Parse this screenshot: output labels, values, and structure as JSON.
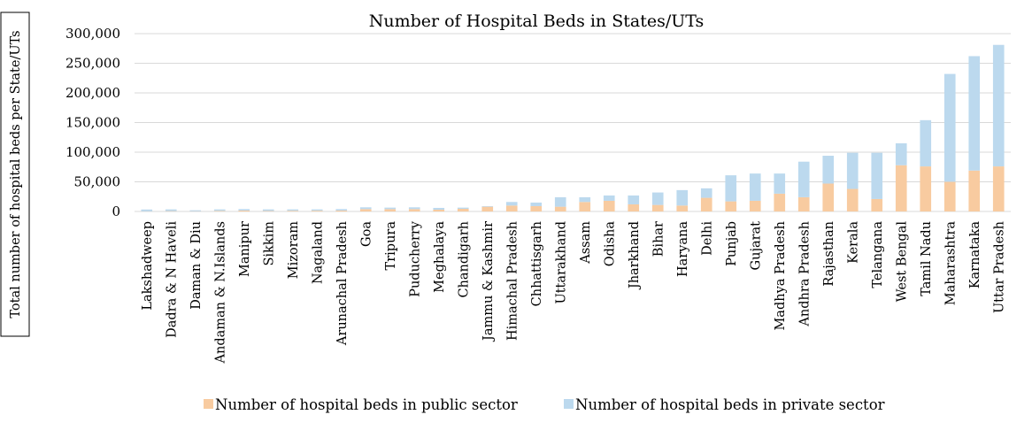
{
  "chart_data": {
    "type": "bar",
    "stacked": true,
    "title": "Number of Hospital Beds in States/UTs",
    "ylabel": "Total number of hospital beds per State/UTs",
    "xlabel": "",
    "ylim": [
      0,
      300000
    ],
    "yticks": [
      0,
      50000,
      100000,
      150000,
      200000,
      250000,
      300000
    ],
    "ytick_labels": [
      "0",
      "50,000",
      "100,000",
      "150,000",
      "200,000",
      "250,000",
      "300,000"
    ],
    "grid": true,
    "legend_position": "bottom",
    "categories": [
      "Lakshadweep",
      "Dadra & N Haveli",
      "Daman & Diu",
      "Andaman & N.Islands",
      "Manipur",
      "Sikkim",
      "Mizoram",
      "Nagaland",
      "Arunachal Pradesh",
      "Goa",
      "Tripura",
      "Puducherry",
      "Meghalaya",
      "Chandigarh",
      "Jammu & Kashmir",
      "Himachal Pradesh",
      "Chhattisgarh",
      "Uttarakhand",
      "Assam",
      "Odisha",
      "Jharkhand",
      "Bihar",
      "Haryana",
      "Delhi",
      "Punjab",
      "Gujarat",
      "Madhya Pradesh",
      "Andhra Pradesh",
      "Rajasthan",
      "Kerala",
      "Telangana",
      "West Bengal",
      "Tamil Nadu",
      "Maharashtra",
      "Karnataka",
      "Uttar Pradesh"
    ],
    "series": [
      {
        "name": "Number of hospital beds in public sector",
        "color": "#f8cba0",
        "values": [
          300,
          600,
          400,
          1000,
          1500,
          800,
          1200,
          1300,
          1500,
          4000,
          4000,
          4000,
          3000,
          4500,
          8000,
          10000,
          9000,
          8000,
          16000,
          18000,
          12000,
          11000,
          10000,
          23000,
          17000,
          18000,
          30000,
          24000,
          47000,
          38000,
          21000,
          78000,
          76000,
          50000,
          69000,
          76000
        ]
      },
      {
        "name": "Number of hospital beds in private sector",
        "color": "#bcd9ee",
        "values": [
          3000,
          2900,
          1600,
          2500,
          2500,
          2700,
          2300,
          2200,
          2500,
          3000,
          2500,
          3000,
          3000,
          2000,
          1000,
          6000,
          6000,
          16000,
          8000,
          9000,
          15000,
          21000,
          26000,
          16000,
          44000,
          46000,
          34000,
          60000,
          47000,
          61000,
          78000,
          37000,
          78000,
          182000,
          193000,
          205000
        ]
      }
    ]
  }
}
